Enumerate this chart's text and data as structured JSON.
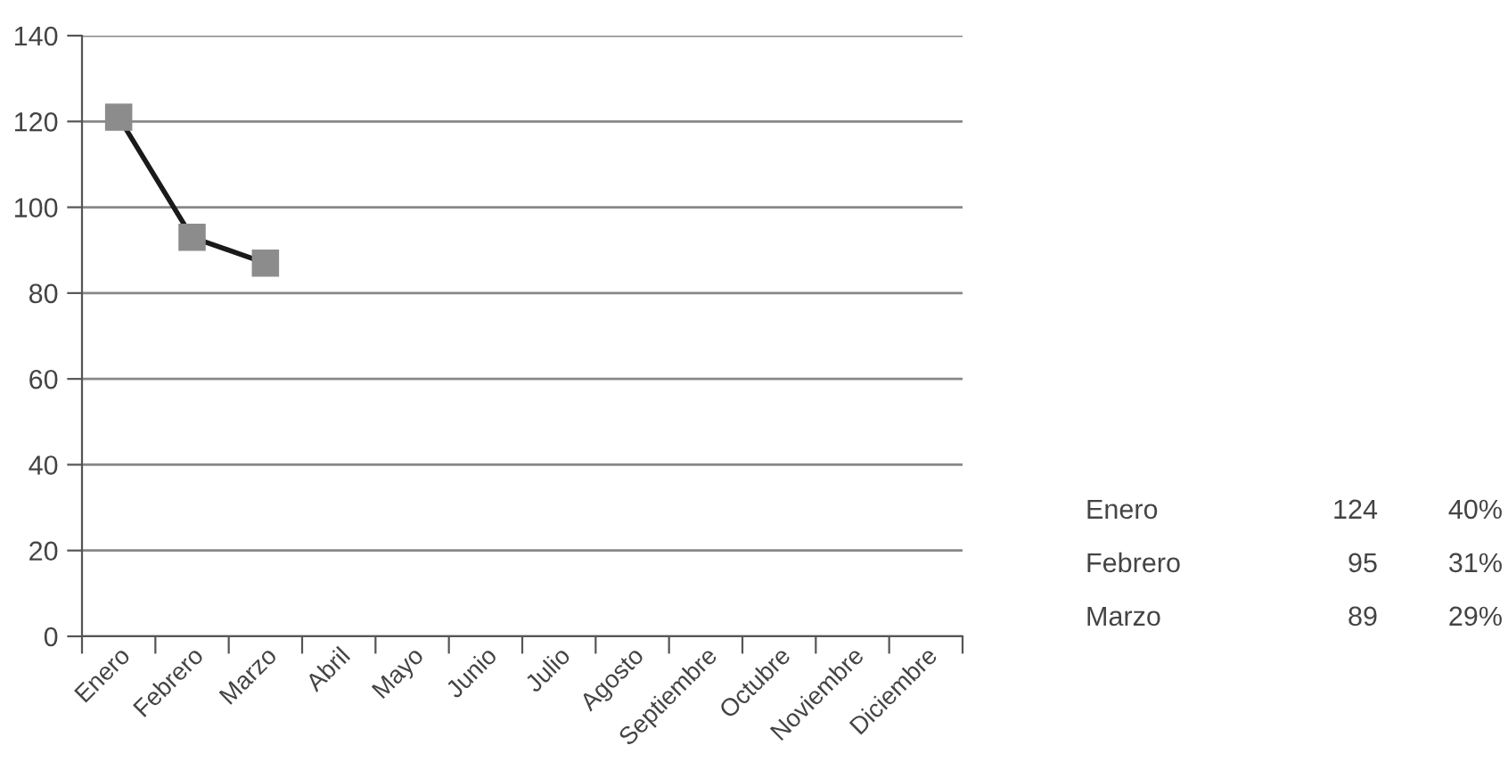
{
  "chart_data": [
    {
      "type": "line",
      "categories": [
        "Enero",
        "Febrero",
        "Marzo",
        "Abril",
        "Mayo",
        "Junio",
        "Julio",
        "Agosto",
        "Septiembre",
        "Octubre",
        "Noviembre",
        "Diciembre"
      ],
      "series": [
        {
          "color": "#1a1a1a",
          "colors": [
            "#8c8c8c",
            "#8c8c8c",
            "#8c8c8c",
            "#8c8c8c",
            "#8c8c8c",
            "#8c8c8c",
            "#8c8c8c",
            "#8c8c8c",
            "#8c8c8c",
            "#8c8c8c",
            "#8c8c8c",
            "#8c8c8c"
          ],
          "values": [
            121,
            93,
            87,
            null,
            null,
            null,
            null,
            null,
            null,
            null,
            null,
            null
          ]
        }
      ],
      "marker": "square",
      "ylim": [
        0,
        140
      ],
      "yticks": [
        0,
        20,
        40,
        60,
        80,
        100,
        120,
        140
      ],
      "grid": "y"
    },
    {
      "type": "other",
      "annotations": [
        "Enero",
        "124",
        "40%",
        "Febrero",
        "95",
        "31%",
        "Marzo",
        "89",
        "29%"
      ]
    }
  ]
}
